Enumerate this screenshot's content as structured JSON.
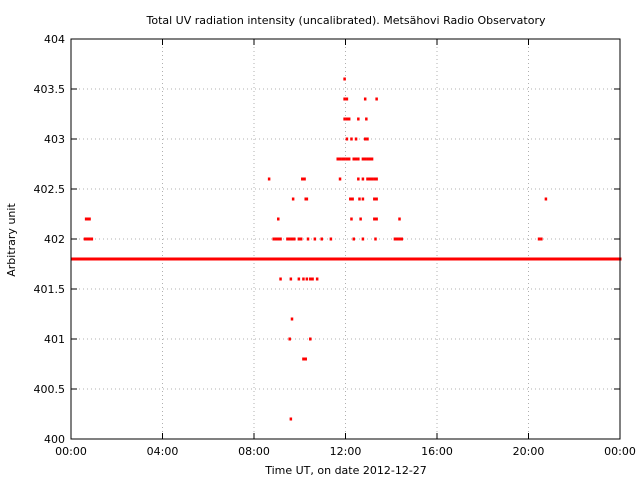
{
  "chart_data": {
    "type": "scatter",
    "title": "Total UV radiation intensity (uncalibrated). Metsähovi Radio Observatory",
    "xlabel": "Time UT, on date 2012-12-27",
    "ylabel": "Arbitrary unit",
    "x_unit": "hours UT",
    "xlim": [
      0,
      24
    ],
    "ylim": [
      400,
      404
    ],
    "x_ticks": [
      0,
      4,
      8,
      12,
      16,
      20,
      24
    ],
    "x_tick_labels": [
      "00:00",
      "04:00",
      "08:00",
      "12:00",
      "16:00",
      "20:00",
      "00:00"
    ],
    "y_ticks": [
      400,
      400.5,
      401,
      401.5,
      402,
      402.5,
      403,
      403.5,
      404
    ],
    "y_tick_labels": [
      "400",
      "400.5",
      "401",
      "401.5",
      "402",
      "402.5",
      "403",
      "403.5",
      "404"
    ],
    "grid": true,
    "marker_color": "#ff0000",
    "baseline": {
      "y": 401.8,
      "x_start": 0.05,
      "x_end": 24.0,
      "step_hours": 0.05
    },
    "series": [
      {
        "points": [
          [
            0.65,
            402.2
          ],
          [
            0.7,
            402.2
          ],
          [
            0.75,
            402.2
          ],
          [
            0.8,
            402.2
          ],
          [
            0.6,
            402.0
          ],
          [
            0.7,
            402.0
          ],
          [
            0.8,
            402.0
          ],
          [
            0.9,
            402.0
          ],
          [
            8.65,
            402.6
          ],
          [
            9.05,
            402.2
          ],
          [
            9.7,
            402.4
          ],
          [
            8.85,
            402.0
          ],
          [
            8.95,
            402.0
          ],
          [
            9.05,
            402.0
          ],
          [
            9.15,
            402.0
          ],
          [
            9.45,
            402.0
          ],
          [
            9.55,
            402.0
          ],
          [
            9.65,
            402.0
          ],
          [
            9.75,
            402.0
          ],
          [
            9.95,
            402.0
          ],
          [
            10.05,
            402.0
          ],
          [
            10.35,
            402.0
          ],
          [
            10.65,
            402.0
          ],
          [
            10.95,
            402.0
          ],
          [
            11.35,
            402.0
          ],
          [
            10.1,
            402.6
          ],
          [
            10.2,
            402.6
          ],
          [
            10.25,
            402.4
          ],
          [
            10.3,
            402.4
          ],
          [
            9.15,
            401.6
          ],
          [
            9.6,
            401.6
          ],
          [
            9.95,
            401.6
          ],
          [
            10.15,
            401.6
          ],
          [
            10.3,
            401.6
          ],
          [
            10.45,
            401.6
          ],
          [
            10.55,
            401.6
          ],
          [
            10.75,
            401.6
          ],
          [
            9.65,
            401.2
          ],
          [
            9.55,
            401.0
          ],
          [
            10.45,
            401.0
          ],
          [
            10.15,
            400.8
          ],
          [
            10.25,
            400.8
          ],
          [
            9.6,
            400.2
          ],
          [
            11.65,
            402.8
          ],
          [
            11.75,
            402.8
          ],
          [
            11.85,
            402.8
          ],
          [
            11.95,
            402.8
          ],
          [
            12.05,
            402.8
          ],
          [
            12.15,
            402.8
          ],
          [
            12.35,
            402.8
          ],
          [
            12.45,
            402.8
          ],
          [
            12.55,
            402.8
          ],
          [
            12.75,
            402.8
          ],
          [
            12.85,
            402.8
          ],
          [
            12.95,
            402.8
          ],
          [
            13.05,
            402.8
          ],
          [
            13.15,
            402.8
          ],
          [
            11.95,
            403.6
          ],
          [
            11.95,
            403.4
          ],
          [
            12.05,
            403.4
          ],
          [
            12.85,
            403.4
          ],
          [
            13.35,
            403.4
          ],
          [
            11.95,
            403.2
          ],
          [
            12.05,
            403.2
          ],
          [
            12.15,
            403.2
          ],
          [
            12.55,
            403.2
          ],
          [
            12.9,
            403.2
          ],
          [
            12.05,
            403.0
          ],
          [
            12.25,
            403.0
          ],
          [
            12.45,
            403.0
          ],
          [
            12.85,
            403.0
          ],
          [
            12.95,
            403.0
          ],
          [
            11.75,
            402.6
          ],
          [
            12.55,
            402.6
          ],
          [
            12.75,
            402.6
          ],
          [
            12.95,
            402.6
          ],
          [
            13.05,
            402.6
          ],
          [
            13.15,
            402.6
          ],
          [
            13.25,
            402.6
          ],
          [
            13.35,
            402.6
          ],
          [
            12.2,
            402.4
          ],
          [
            12.3,
            402.4
          ],
          [
            12.6,
            402.4
          ],
          [
            12.75,
            402.4
          ],
          [
            13.25,
            402.4
          ],
          [
            13.35,
            402.4
          ],
          [
            12.25,
            402.2
          ],
          [
            12.65,
            402.2
          ],
          [
            13.25,
            402.2
          ],
          [
            13.35,
            402.2
          ],
          [
            14.35,
            402.2
          ],
          [
            12.35,
            402.0
          ],
          [
            12.75,
            402.0
          ],
          [
            13.3,
            402.0
          ],
          [
            14.15,
            402.0
          ],
          [
            14.25,
            402.0
          ],
          [
            14.35,
            402.0
          ],
          [
            14.45,
            402.0
          ],
          [
            20.45,
            402.0
          ],
          [
            20.55,
            402.0
          ],
          [
            20.75,
            402.4
          ]
        ]
      }
    ]
  }
}
